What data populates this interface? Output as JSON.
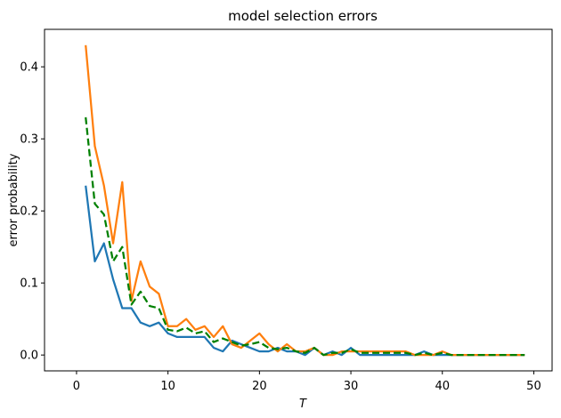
{
  "chart_data": {
    "type": "line",
    "title": "model selection errors",
    "xlabel": "T",
    "ylabel": "error probability",
    "xlim": [
      -3.5,
      52
    ],
    "ylim": [
      -0.022,
      0.452
    ],
    "xticks": [
      0,
      10,
      20,
      30,
      40,
      50
    ],
    "yticks": [
      0.0,
      0.1,
      0.2,
      0.3,
      0.4
    ],
    "xtick_labels": [
      "0",
      "10",
      "20",
      "30",
      "40",
      "50"
    ],
    "ytick_labels": [
      "0.0",
      "0.1",
      "0.2",
      "0.3",
      "0.4"
    ],
    "grid": false,
    "legend": false,
    "x": [
      1,
      2,
      3,
      4,
      5,
      6,
      7,
      8,
      9,
      10,
      11,
      12,
      13,
      14,
      15,
      16,
      17,
      18,
      19,
      20,
      21,
      22,
      23,
      24,
      25,
      26,
      27,
      28,
      29,
      30,
      31,
      32,
      33,
      34,
      35,
      36,
      37,
      38,
      39,
      40,
      41,
      42,
      43,
      44,
      45,
      46,
      47,
      48,
      49
    ],
    "series": [
      {
        "color": "#1f77b4",
        "style": "solid",
        "values": [
          0.235,
          0.13,
          0.155,
          0.105,
          0.065,
          0.065,
          0.045,
          0.04,
          0.045,
          0.03,
          0.025,
          0.025,
          0.025,
          0.025,
          0.01,
          0.005,
          0.02,
          0.015,
          0.01,
          0.005,
          0.005,
          0.01,
          0.005,
          0.005,
          0.0,
          0.01,
          0.0,
          0.005,
          0.0,
          0.01,
          0.0,
          0.0,
          0.0,
          0.0,
          0.0,
          0.0,
          0.0,
          0.005,
          0.0,
          0.0,
          0.0,
          0.0,
          0.0,
          0.0,
          0.0,
          0.0,
          0.0,
          0.0,
          0.0
        ]
      },
      {
        "color": "#ff7f0e",
        "style": "solid",
        "values": [
          0.43,
          0.29,
          0.235,
          0.155,
          0.24,
          0.075,
          0.13,
          0.095,
          0.085,
          0.04,
          0.04,
          0.05,
          0.035,
          0.04,
          0.025,
          0.04,
          0.015,
          0.01,
          0.02,
          0.03,
          0.015,
          0.005,
          0.015,
          0.005,
          0.005,
          0.01,
          0.0,
          0.0,
          0.005,
          0.005,
          0.005,
          0.005,
          0.005,
          0.005,
          0.005,
          0.005,
          0.0,
          0.0,
          0.0,
          0.005,
          0.0,
          0.0,
          0.0,
          0.0,
          0.0,
          0.0,
          0.0,
          0.0,
          0.0
        ]
      },
      {
        "color": "#008000",
        "style": "dashed",
        "values": [
          0.33,
          0.21,
          0.195,
          0.13,
          0.15,
          0.07,
          0.088,
          0.068,
          0.065,
          0.035,
          0.033,
          0.038,
          0.03,
          0.033,
          0.018,
          0.023,
          0.018,
          0.013,
          0.015,
          0.018,
          0.01,
          0.008,
          0.01,
          0.005,
          0.003,
          0.01,
          0.0,
          0.003,
          0.003,
          0.008,
          0.003,
          0.003,
          0.003,
          0.003,
          0.003,
          0.003,
          0.0,
          0.003,
          0.0,
          0.003,
          0.0,
          0.0,
          0.0,
          0.0,
          0.0,
          0.0,
          0.0,
          0.0,
          0.0
        ]
      }
    ]
  }
}
